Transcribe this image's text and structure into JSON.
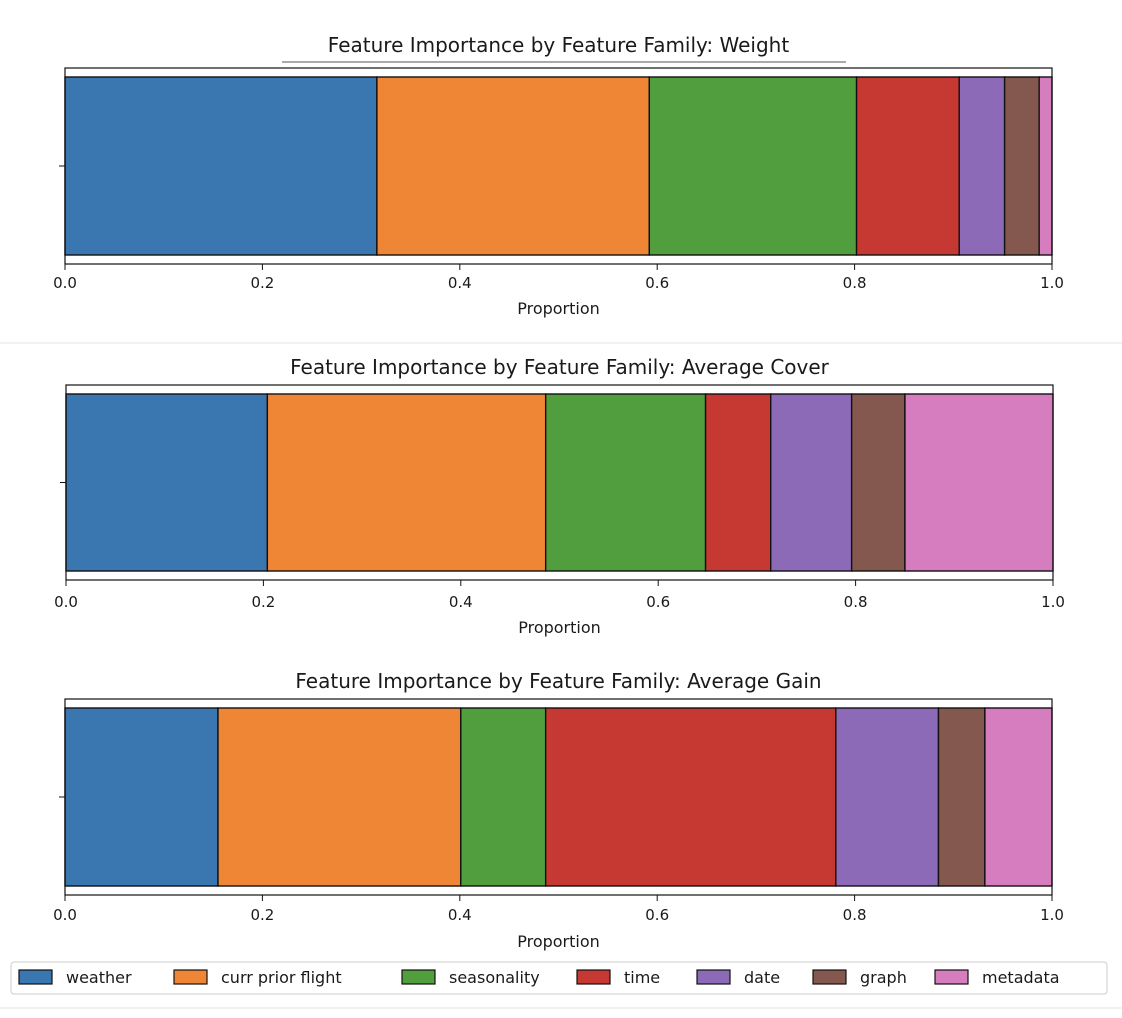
{
  "chart_data": [
    {
      "type": "bar",
      "orientation": "horizontal-stacked",
      "title": "Feature Importance by Feature Family: Weight",
      "xlabel": "Proportion",
      "ylabel": "",
      "xlim": [
        0,
        1
      ],
      "xticks": [
        "0.0",
        "0.2",
        "0.4",
        "0.6",
        "0.8",
        "1.0"
      ],
      "grid": false,
      "series": [
        {
          "name": "weather",
          "values": [
            0.316
          ]
        },
        {
          "name": "curr prior flight",
          "values": [
            0.276
          ]
        },
        {
          "name": "seasonality",
          "values": [
            0.21
          ]
        },
        {
          "name": "time",
          "values": [
            0.104
          ]
        },
        {
          "name": "date",
          "values": [
            0.046
          ]
        },
        {
          "name": "graph",
          "values": [
            0.035
          ]
        },
        {
          "name": "metadata",
          "values": [
            0.013
          ]
        }
      ]
    },
    {
      "type": "bar",
      "orientation": "horizontal-stacked",
      "title": "Feature Importance by Feature Family: Average Cover",
      "xlabel": "Proportion",
      "ylabel": "",
      "xlim": [
        0,
        1
      ],
      "xticks": [
        "0.0",
        "0.2",
        "0.4",
        "0.6",
        "0.8",
        "1.0"
      ],
      "grid": false,
      "series": [
        {
          "name": "weather",
          "values": [
            0.204
          ]
        },
        {
          "name": "curr prior flight",
          "values": [
            0.282
          ]
        },
        {
          "name": "seasonality",
          "values": [
            0.162
          ]
        },
        {
          "name": "time",
          "values": [
            0.066
          ]
        },
        {
          "name": "date",
          "values": [
            0.082
          ]
        },
        {
          "name": "graph",
          "values": [
            0.054
          ]
        },
        {
          "name": "metadata",
          "values": [
            0.15
          ]
        }
      ]
    },
    {
      "type": "bar",
      "orientation": "horizontal-stacked",
      "title": "Feature Importance by Feature Family: Average Gain",
      "xlabel": "Proportion",
      "ylabel": "",
      "xlim": [
        0,
        1
      ],
      "xticks": [
        "0.0",
        "0.2",
        "0.4",
        "0.6",
        "0.8",
        "1.0"
      ],
      "grid": false,
      "series": [
        {
          "name": "weather",
          "values": [
            0.155
          ]
        },
        {
          "name": "curr prior flight",
          "values": [
            0.246
          ]
        },
        {
          "name": "seasonality",
          "values": [
            0.086
          ]
        },
        {
          "name": "time",
          "values": [
            0.294
          ]
        },
        {
          "name": "date",
          "values": [
            0.104
          ]
        },
        {
          "name": "graph",
          "values": [
            0.047
          ]
        },
        {
          "name": "metadata",
          "values": [
            0.072
          ]
        }
      ]
    }
  ],
  "legend": {
    "placement": "bottom",
    "entries": [
      {
        "label": "weather",
        "color": "#3a76af"
      },
      {
        "label": "curr prior flight",
        "color": "#ef8636"
      },
      {
        "label": "seasonality",
        "color": "#519e3e"
      },
      {
        "label": "time",
        "color": "#c53932"
      },
      {
        "label": "date",
        "color": "#8d6ab8"
      },
      {
        "label": "graph",
        "color": "#84584e"
      },
      {
        "label": "metadata",
        "color": "#d57dbf"
      }
    ]
  },
  "colors": {
    "weather": "#3a76af",
    "curr prior flight": "#ef8636",
    "seasonality": "#519e3e",
    "time": "#c53932",
    "date": "#8d6ab8",
    "graph": "#84584e",
    "metadata": "#d57dbf"
  }
}
